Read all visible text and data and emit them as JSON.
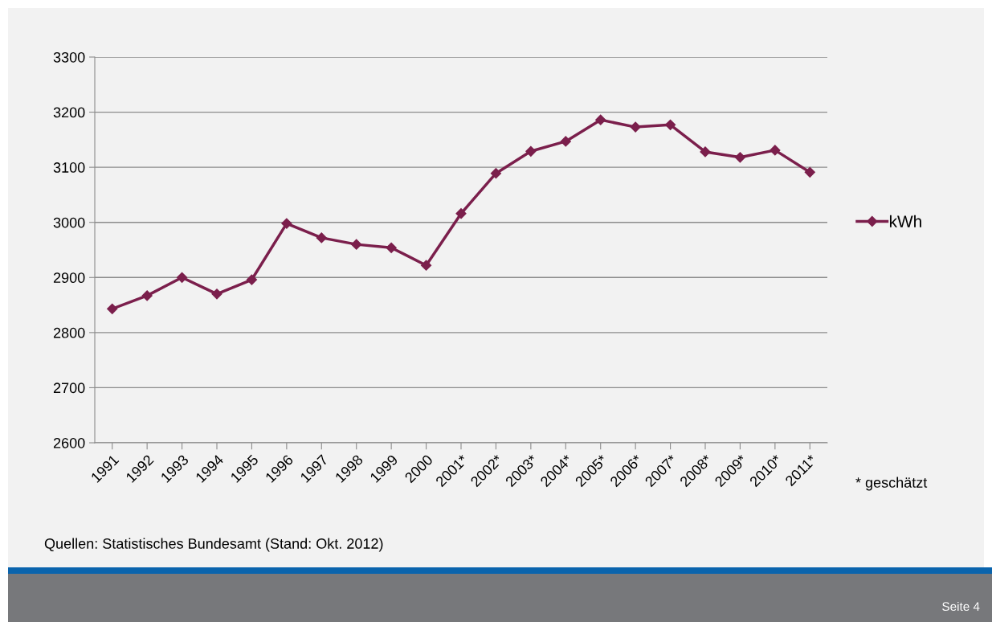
{
  "chart_data": {
    "type": "line",
    "categories": [
      "1991",
      "1992",
      "1993",
      "1994",
      "1995",
      "1996",
      "1997",
      "1998",
      "1999",
      "2000",
      "2001*",
      "2002*",
      "2003*",
      "2004*",
      "2005*",
      "2006*",
      "2007*",
      "2008*",
      "2009*",
      "2010*",
      "2011*"
    ],
    "series": [
      {
        "name": "kWh",
        "color": "#7b1f4c",
        "values": [
          2843,
          2867,
          2900,
          2870,
          2896,
          2998,
          2972,
          2960,
          2954,
          2922,
          3016,
          3089,
          3129,
          3147,
          3186,
          3173,
          3177,
          3128,
          3118,
          3131,
          3091
        ]
      }
    ],
    "ylim": [
      2600,
      3300
    ],
    "yticks": [
      2600,
      2700,
      2800,
      2900,
      3000,
      3100,
      3200,
      3300
    ],
    "grid": "y",
    "legend": "right",
    "marker": "diamond",
    "line_style": "solid",
    "annotations": [
      "* geschätzt",
      "Quellen: Statistisches Bundesamt (Stand: Okt. 2012)",
      "Seite 4"
    ]
  }
}
